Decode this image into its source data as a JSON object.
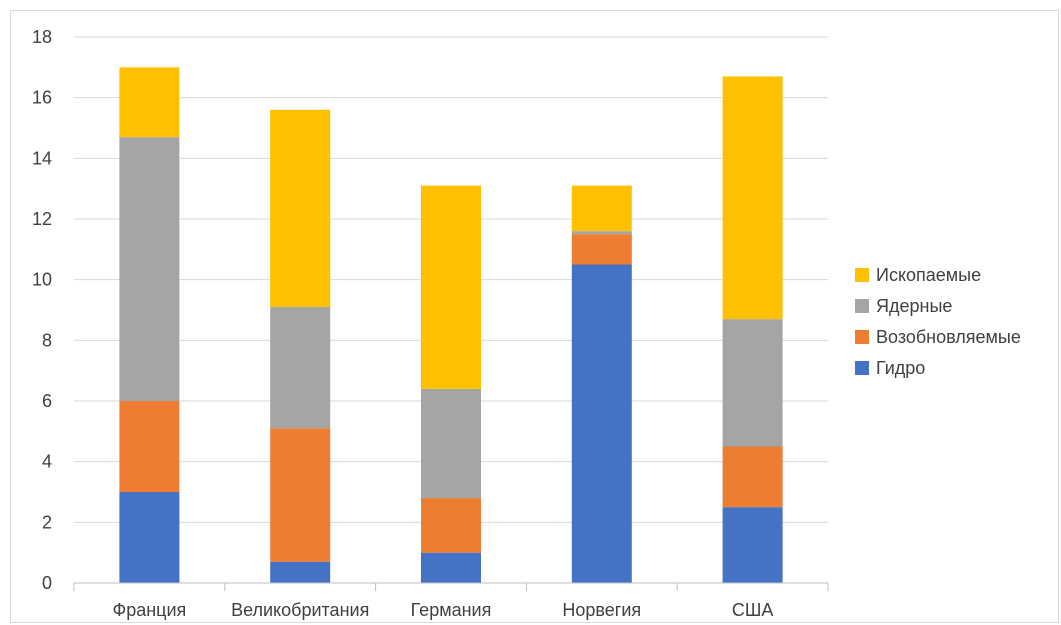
{
  "chart_data": {
    "type": "bar",
    "stacked": true,
    "categories": [
      "Франция",
      "Великобритания",
      "Германия",
      "Норвегия",
      "США"
    ],
    "series": [
      {
        "name": "Гидро",
        "color": "#4472C4",
        "values": [
          3.0,
          0.7,
          1.0,
          10.5,
          2.5
        ]
      },
      {
        "name": "Возобновляемые",
        "color": "#ED7D31",
        "values": [
          3.0,
          4.4,
          1.8,
          1.0,
          2.0
        ]
      },
      {
        "name": "Ядерные",
        "color": "#A5A5A5",
        "values": [
          8.7,
          4.0,
          3.6,
          0.1,
          4.2
        ]
      },
      {
        "name": "Ископаемые",
        "color": "#FFC000",
        "values": [
          2.3,
          6.5,
          6.7,
          1.5,
          8.0
        ]
      }
    ],
    "ylim": [
      0,
      18
    ],
    "yticks": [
      0,
      2,
      4,
      6,
      8,
      10,
      12,
      14,
      16,
      18
    ],
    "grid": true,
    "legend_position": "right"
  }
}
